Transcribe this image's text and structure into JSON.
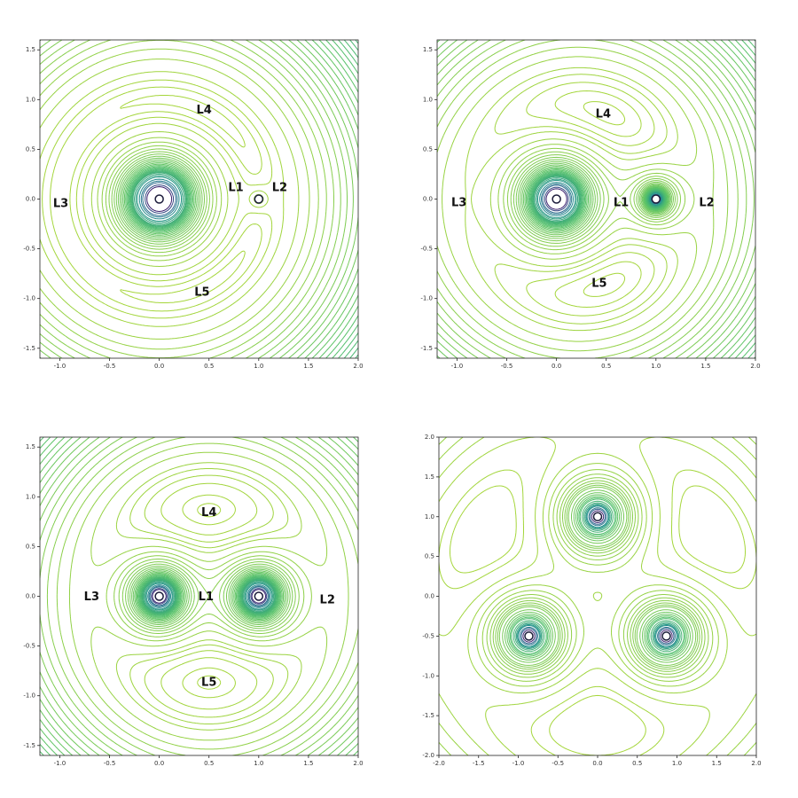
{
  "chart_data": [
    {
      "type": "contour",
      "xlim": [
        -1.2,
        2.0
      ],
      "ylim": [
        -1.6,
        1.6
      ],
      "xticks": [
        {
          "value": -1,
          "label": "-1.0"
        },
        -0.5,
        {
          "value": 0,
          "label": "0.0"
        },
        0.5,
        {
          "value": 1,
          "label": "1.0"
        },
        1.5,
        {
          "value": 2,
          "label": "2.0"
        }
      ],
      "yticks": [
        -1.5,
        {
          "value": -1,
          "label": "-1.0"
        },
        -0.5,
        {
          "value": 0,
          "label": "0.0"
        },
        0.5,
        {
          "value": 1,
          "label": "1.0"
        },
        1.5
      ],
      "bodies": [
        {
          "x": 0,
          "y": 0,
          "mass": 0.99
        },
        {
          "x": 1,
          "y": 0,
          "mass": 0.01
        }
      ],
      "levels": [
        -1.5,
        -1.52,
        -1.55,
        -1.6,
        -1.7,
        -1.8,
        -1.9,
        -2,
        -2.1,
        -2.2,
        -2.3,
        -2.4,
        -2.5,
        -2.6,
        -2.7,
        -2.8,
        -2.9,
        -3,
        -3.1,
        -3.2,
        -3.3,
        -3.4,
        -3.5,
        -3.6,
        -3.7,
        -3.8,
        -4,
        -4.25,
        -4.5,
        -5,
        -5.5,
        -6,
        -7,
        -8
      ],
      "colormap": [
        "#3b1f6e",
        "#2f5f8e",
        "#21918c",
        "#55c16a",
        "#a5d63a"
      ],
      "annotations": [
        {
          "text": "L4",
          "x": 0.45,
          "y": 0.89
        },
        {
          "text": "L1",
          "x": 0.77,
          "y": 0.11
        },
        {
          "text": "L2",
          "x": 1.21,
          "y": 0.11
        },
        {
          "text": "L3",
          "x": -0.99,
          "y": -0.05
        },
        {
          "text": "L5",
          "x": 0.43,
          "y": -0.94
        }
      ]
    },
    {
      "type": "contour",
      "xlim": [
        -1.2,
        2.0
      ],
      "ylim": [
        -1.6,
        1.6
      ],
      "xticks": [
        {
          "value": -1,
          "label": "-1.0"
        },
        -0.5,
        {
          "value": 0,
          "label": "0.0"
        },
        0.5,
        {
          "value": 1,
          "label": "1.0"
        },
        1.5,
        {
          "value": 2,
          "label": "2.0"
        }
      ],
      "yticks": [
        -1.5,
        {
          "value": -1,
          "label": "-1.0"
        },
        -0.5,
        {
          "value": 0,
          "label": "0.0"
        },
        0.5,
        {
          "value": 1,
          "label": "1.0"
        },
        1.5
      ],
      "bodies": [
        {
          "x": 0,
          "y": 0,
          "mass": 0.8
        },
        {
          "x": 1,
          "y": 0,
          "mass": 0.2
        }
      ],
      "levels": [
        -1.43,
        -1.46,
        -1.5,
        -1.55,
        -1.6,
        -1.7,
        -1.8,
        -1.9,
        -2,
        -2.1,
        -2.2,
        -2.3,
        -2.4,
        -2.5,
        -2.6,
        -2.7,
        -2.8,
        -2.9,
        -3,
        -3.1,
        -3.2,
        -3.3,
        -3.4,
        -3.5,
        -3.6,
        -3.7,
        -3.8,
        -4,
        -4.25,
        -4.5,
        -5,
        -5.5,
        -6,
        -7,
        -8
      ],
      "colormap": [
        "#3b1f6e",
        "#2f5f8e",
        "#21918c",
        "#55c16a",
        "#a5d63a"
      ],
      "annotations": [
        {
          "text": "L4",
          "x": 0.47,
          "y": 0.85
        },
        {
          "text": "L1",
          "x": 0.65,
          "y": -0.04
        },
        {
          "text": "L2",
          "x": 1.51,
          "y": -0.04
        },
        {
          "text": "L3",
          "x": -0.98,
          "y": -0.04
        },
        {
          "text": "L5",
          "x": 0.43,
          "y": -0.85
        }
      ]
    },
    {
      "type": "contour",
      "xlim": [
        -1.2,
        2.0
      ],
      "ylim": [
        -1.6,
        1.6
      ],
      "xticks": [
        {
          "value": -1,
          "label": "-1.0"
        },
        -0.5,
        {
          "value": 0,
          "label": "0.0"
        },
        0.5,
        {
          "value": 1,
          "label": "1.0"
        },
        1.5,
        {
          "value": 2,
          "label": "2.0"
        }
      ],
      "yticks": [
        -1.5,
        {
          "value": -1,
          "label": "-1.0"
        },
        -0.5,
        {
          "value": 0,
          "label": "0.0"
        },
        0.5,
        {
          "value": 1,
          "label": "1.0"
        },
        1.5
      ],
      "bodies": [
        {
          "x": 0,
          "y": 0,
          "mass": 0.5
        },
        {
          "x": 1,
          "y": 0,
          "mass": 0.5
        }
      ],
      "levels": [
        -1.38,
        -1.4,
        -1.45,
        -1.5,
        -1.55,
        -1.6,
        -1.7,
        -1.8,
        -1.9,
        -2,
        -2.1,
        -2.2,
        -2.3,
        -2.4,
        -2.5,
        -2.6,
        -2.7,
        -2.8,
        -2.9,
        -3,
        -3.1,
        -3.2,
        -3.3,
        -3.4,
        -3.5,
        -3.6,
        -3.7,
        -3.8,
        -4,
        -4.25,
        -4.5,
        -5,
        -5.5,
        -6,
        -7,
        -8
      ],
      "colormap": [
        "#3b1f6e",
        "#2f5f8e",
        "#21918c",
        "#55c16a",
        "#a5d63a"
      ],
      "annotations": [
        {
          "text": "L4",
          "x": 0.5,
          "y": 0.84
        },
        {
          "text": "L3",
          "x": -0.68,
          "y": -0.01
        },
        {
          "text": "L1",
          "x": 0.47,
          "y": -0.01
        },
        {
          "text": "L2",
          "x": 1.69,
          "y": -0.04
        },
        {
          "text": "L5",
          "x": 0.5,
          "y": -0.87
        }
      ]
    },
    {
      "type": "contour",
      "xlim": [
        -2.0,
        2.0
      ],
      "ylim": [
        -2.0,
        2.0
      ],
      "xticks": [
        {
          "value": -2,
          "label": "-2.0"
        },
        -1.5,
        {
          "value": -1,
          "label": "-1.0"
        },
        -0.5,
        {
          "value": 0,
          "label": "0.0"
        },
        0.5,
        {
          "value": 1,
          "label": "1.0"
        },
        1.5,
        {
          "value": 2,
          "label": "2.0"
        }
      ],
      "yticks": [
        {
          "value": -2,
          "label": "-2.0"
        },
        -1.5,
        {
          "value": -1,
          "label": "-1.0"
        },
        -0.5,
        {
          "value": 0,
          "label": "0.0"
        },
        0.5,
        {
          "value": 1,
          "label": "1.0"
        },
        1.5,
        {
          "value": 2,
          "label": "2.0"
        }
      ],
      "bodies": [
        {
          "x": 0,
          "y": 1,
          "mass": 0.333
        },
        {
          "x": -0.866,
          "y": -0.5,
          "mass": 0.333
        },
        {
          "x": 0.866,
          "y": -0.5,
          "mass": 0.333
        }
      ],
      "levels": [
        -0.88,
        -0.9,
        -0.95,
        -1,
        -1.05,
        -1.1,
        -1.15,
        -1.2,
        -1.25,
        -1.3,
        -1.35,
        -1.4,
        -1.5,
        -1.6,
        -1.7,
        -1.8,
        -1.9,
        -2,
        -2.2,
        -2.4,
        -2.6,
        -2.8,
        -3,
        -3.5,
        -4,
        -5
      ],
      "colormap": [
        "#3b1f6e",
        "#2f5f8e",
        "#21918c",
        "#55c16a",
        "#a5d63a"
      ],
      "annotations": []
    }
  ]
}
